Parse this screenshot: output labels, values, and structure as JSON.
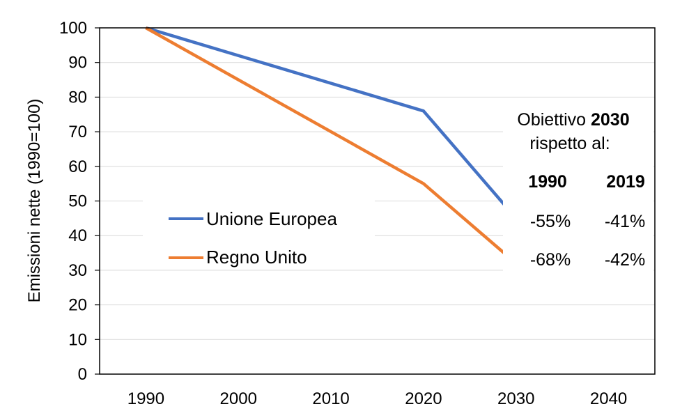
{
  "chart_data": {
    "type": "line",
    "xlabel": "",
    "ylabel": "Emissioni nette (1990=100)",
    "xlim": [
      1985,
      2045
    ],
    "ylim": [
      0,
      100
    ],
    "xticks": [
      "1990",
      "2000",
      "2010",
      "2020",
      "2030",
      "2040"
    ],
    "yticks": [
      "0",
      "10",
      "20",
      "30",
      "40",
      "50",
      "60",
      "70",
      "80",
      "90",
      "100"
    ],
    "grid": true,
    "legend_position": "center-left",
    "series": [
      {
        "name": "Unione Europea",
        "color": "#4472C4",
        "x": [
          1990,
          2020,
          2030
        ],
        "y": [
          100,
          76,
          45
        ]
      },
      {
        "name": "Regno Unito",
        "color": "#ED7D31",
        "x": [
          1990,
          2020,
          2030
        ],
        "y": [
          100,
          55,
          32
        ]
      }
    ],
    "annotation": {
      "title_line1_regular": "Obiettivo",
      "title_line1_bold": "2030",
      "title_line2": "rispetto al:",
      "headers": [
        "1990",
        "2019"
      ],
      "rows": [
        {
          "series": "Unione Europea",
          "values": [
            "-55%",
            "-41%"
          ]
        },
        {
          "series": "Regno Unito",
          "values": [
            "-68%",
            "-42%"
          ]
        }
      ]
    }
  }
}
